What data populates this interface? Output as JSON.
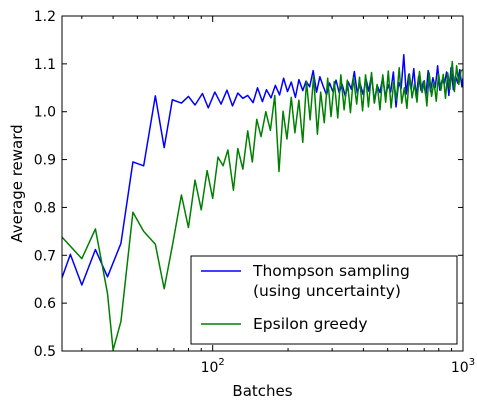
{
  "chart_data": {
    "type": "line",
    "title": "",
    "xlabel": "Batches",
    "ylabel": "Average reward",
    "xscale": "log",
    "xlim": [
      25,
      1000
    ],
    "ylim": [
      0.5,
      1.2
    ],
    "x_ticks": [
      {
        "value": 100,
        "base": "10",
        "exp": "2"
      },
      {
        "value": 1000,
        "base": "10",
        "exp": "3"
      }
    ],
    "y_ticks": [
      "0.5",
      "0.6",
      "0.7",
      "0.8",
      "0.9",
      "1.0",
      "1.1",
      "1.2"
    ],
    "legend_position": "lower-right",
    "series": [
      {
        "name": "Thompson sampling\n(using uncertainty)",
        "color": "#0000ff",
        "points": [
          [
            25,
            0.653
          ],
          [
            27,
            0.702
          ],
          [
            30,
            0.638
          ],
          [
            34,
            0.712
          ],
          [
            38,
            0.655
          ],
          [
            43,
            0.725
          ],
          [
            48,
            0.895
          ],
          [
            53,
            0.887
          ],
          [
            59,
            1.033
          ],
          [
            64,
            0.925
          ],
          [
            69,
            1.025
          ],
          [
            75,
            1.018
          ],
          [
            80,
            1.032
          ],
          [
            85,
            1.014
          ],
          [
            91,
            1.038
          ],
          [
            96,
            1.008
          ],
          [
            102,
            1.041
          ],
          [
            108,
            1.016
          ],
          [
            114,
            1.045
          ],
          [
            120,
            1.012
          ],
          [
            126,
            1.039
          ],
          [
            132,
            1.028
          ],
          [
            138,
            1.034
          ],
          [
            145,
            1.019
          ],
          [
            151,
            1.05
          ],
          [
            158,
            1.021
          ],
          [
            164,
            1.046
          ],
          [
            171,
            1.029
          ],
          [
            178,
            1.055
          ],
          [
            185,
            1.035
          ],
          [
            192,
            1.07
          ],
          [
            199,
            1.042
          ],
          [
            206,
            1.062
          ],
          [
            214,
            1.03
          ],
          [
            221,
            1.067
          ],
          [
            229,
            1.044
          ],
          [
            236,
            1.064
          ],
          [
            244,
            1.052
          ],
          [
            252,
            1.086
          ],
          [
            260,
            1.041
          ],
          [
            268,
            1.073
          ],
          [
            276,
            1.054
          ],
          [
            285,
            1.035
          ],
          [
            293,
            1.06
          ],
          [
            302,
            1.042
          ],
          [
            311,
            1.066
          ],
          [
            320,
            1.04
          ],
          [
            329,
            1.057
          ],
          [
            339,
            1.032
          ],
          [
            348,
            1.062
          ],
          [
            358,
            1.047
          ],
          [
            368,
            1.084
          ],
          [
            378,
            1.039
          ],
          [
            388,
            1.059
          ],
          [
            399,
            1.036
          ],
          [
            410,
            1.068
          ],
          [
            420,
            1.043
          ],
          [
            431,
            1.077
          ],
          [
            443,
            1.02
          ],
          [
            454,
            1.055
          ],
          [
            466,
            1.04
          ],
          [
            478,
            1.072
          ],
          [
            490,
            1.031
          ],
          [
            502,
            1.056
          ],
          [
            514,
            1.041
          ],
          [
            527,
            1.083
          ],
          [
            540,
            1.01
          ],
          [
            553,
            1.061
          ],
          [
            566,
            1.048
          ],
          [
            580,
            1.119
          ],
          [
            593,
            1.037
          ],
          [
            607,
            1.078
          ],
          [
            621,
            1.046
          ],
          [
            636,
            1.09
          ],
          [
            650,
            1.03
          ],
          [
            665,
            1.074
          ],
          [
            680,
            1.044
          ],
          [
            695,
            1.063
          ],
          [
            711,
            1.033
          ],
          [
            726,
            1.086
          ],
          [
            742,
            1.042
          ],
          [
            758,
            1.071
          ],
          [
            775,
            1.051
          ],
          [
            792,
            1.096
          ],
          [
            808,
            1.045
          ],
          [
            825,
            1.066
          ],
          [
            843,
            1.058
          ],
          [
            860,
            1.083
          ],
          [
            878,
            1.034
          ],
          [
            896,
            1.092
          ],
          [
            915,
            1.046
          ],
          [
            933,
            1.075
          ],
          [
            952,
            1.06
          ],
          [
            971,
            1.088
          ],
          [
            990,
            1.052
          ],
          [
            1000,
            1.07
          ]
        ]
      },
      {
        "name": "Epsilon greedy",
        "color": "#008000",
        "points": [
          [
            25,
            0.738
          ],
          [
            30,
            0.693
          ],
          [
            34,
            0.755
          ],
          [
            38,
            0.62
          ],
          [
            40,
            0.502
          ],
          [
            43,
            0.562
          ],
          [
            48,
            0.79
          ],
          [
            53,
            0.75
          ],
          [
            59,
            0.723
          ],
          [
            64,
            0.63
          ],
          [
            69,
            0.72
          ],
          [
            75,
            0.826
          ],
          [
            80,
            0.758
          ],
          [
            85,
            0.857
          ],
          [
            90,
            0.795
          ],
          [
            95,
            0.877
          ],
          [
            100,
            0.819
          ],
          [
            105,
            0.905
          ],
          [
            110,
            0.887
          ],
          [
            115,
            0.92
          ],
          [
            121,
            0.836
          ],
          [
            126,
            0.923
          ],
          [
            132,
            0.88
          ],
          [
            138,
            0.96
          ],
          [
            144,
            0.895
          ],
          [
            150,
            0.984
          ],
          [
            156,
            0.948
          ],
          [
            163,
            1.0
          ],
          [
            170,
            0.961
          ],
          [
            177,
            1.034
          ],
          [
            184,
            0.875
          ],
          [
            191,
            1.001
          ],
          [
            198,
            0.943
          ],
          [
            206,
            1.03
          ],
          [
            213,
            0.956
          ],
          [
            221,
            1.024
          ],
          [
            229,
            0.936
          ],
          [
            237,
            1.063
          ],
          [
            245,
            0.983
          ],
          [
            253,
            1.074
          ],
          [
            262,
            0.953
          ],
          [
            270,
            1.041
          ],
          [
            279,
            0.977
          ],
          [
            288,
            1.07
          ],
          [
            297,
            0.99
          ],
          [
            306,
            1.063
          ],
          [
            316,
            0.987
          ],
          [
            325,
            1.077
          ],
          [
            335,
            1.004
          ],
          [
            345,
            1.066
          ],
          [
            355,
            0.998
          ],
          [
            365,
            1.072
          ],
          [
            376,
            1.016
          ],
          [
            386,
            1.072
          ],
          [
            397,
            1.002
          ],
          [
            408,
            1.077
          ],
          [
            419,
            1.01
          ],
          [
            431,
            1.082
          ],
          [
            442,
            1.018
          ],
          [
            454,
            1.057
          ],
          [
            466,
            1.004
          ],
          [
            478,
            1.077
          ],
          [
            491,
            1.02
          ],
          [
            503,
            1.085
          ],
          [
            516,
            1.008
          ],
          [
            529,
            1.062
          ],
          [
            542,
            1.024
          ],
          [
            556,
            1.092
          ],
          [
            569,
            1.018
          ],
          [
            583,
            1.05
          ],
          [
            597,
            1.007
          ],
          [
            611,
            1.079
          ],
          [
            626,
            1.029
          ],
          [
            640,
            1.058
          ],
          [
            655,
            1.02
          ],
          [
            670,
            1.084
          ],
          [
            686,
            1.04
          ],
          [
            701,
            1.065
          ],
          [
            717,
            1.012
          ],
          [
            733,
            1.081
          ],
          [
            749,
            1.032
          ],
          [
            766,
            1.062
          ],
          [
            782,
            1.022
          ],
          [
            799,
            1.079
          ],
          [
            816,
            1.045
          ],
          [
            834,
            1.078
          ],
          [
            851,
            1.028
          ],
          [
            869,
            1.081
          ],
          [
            887,
            1.047
          ],
          [
            906,
            1.105
          ],
          [
            924,
            1.042
          ],
          [
            943,
            1.096
          ],
          [
            962,
            1.057
          ],
          [
            981,
            1.085
          ],
          [
            1000,
            1.088
          ]
        ]
      }
    ]
  }
}
